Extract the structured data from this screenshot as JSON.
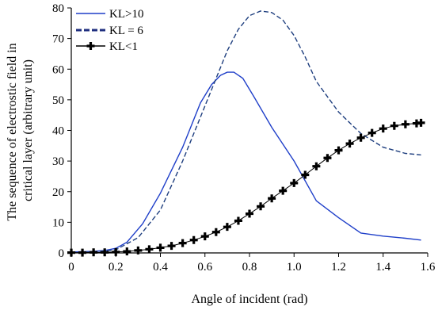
{
  "chart_data": {
    "type": "line",
    "xlabel": "Angle of incident (rad)",
    "ylabel_lines": [
      "The sequence of electrostic field in",
      "critical layer (arbitrary unit)"
    ],
    "xlim": [
      0,
      1.6
    ],
    "ylim": [
      0,
      80
    ],
    "xticks": [
      "0",
      "0.2",
      "0.4",
      "0.6",
      "0.8",
      "1.0",
      "1.2",
      "1.4",
      "1.6"
    ],
    "yticks": [
      "0",
      "10",
      "20",
      "30",
      "40",
      "50",
      "60",
      "70",
      "80"
    ],
    "grid": false,
    "legend_position": "top-left",
    "series": [
      {
        "name": "KL>10",
        "style": "solid",
        "color": "#1f3fc9",
        "x": [
          0,
          0.1,
          0.15,
          0.2,
          0.25,
          0.32,
          0.4,
          0.5,
          0.58,
          0.63,
          0.67,
          0.7,
          0.73,
          0.77,
          0.82,
          0.9,
          1.0,
          1.1,
          1.2,
          1.3,
          1.4,
          1.5,
          1.57
        ],
        "y": [
          0.3,
          0.5,
          0.8,
          1.5,
          3.5,
          9.5,
          19.5,
          34.5,
          49,
          55,
          58,
          59,
          59,
          57,
          51,
          41,
          30,
          17,
          11.5,
          6.5,
          5.5,
          4.8,
          4.2
        ]
      },
      {
        "name": "KL = 6",
        "style": "dashed",
        "color": "#1f3f7f",
        "x": [
          0,
          0.1,
          0.2,
          0.3,
          0.4,
          0.5,
          0.6,
          0.7,
          0.75,
          0.8,
          0.85,
          0.9,
          0.95,
          1.0,
          1.05,
          1.1,
          1.2,
          1.3,
          1.4,
          1.5,
          1.57
        ],
        "y": [
          0.2,
          0.3,
          1.0,
          5,
          14,
          30,
          48,
          66,
          73,
          77.5,
          79,
          78.5,
          76,
          71,
          64,
          56,
          46,
          39,
          34.5,
          32.5,
          32
        ]
      },
      {
        "name": "KL<1",
        "style": "plus-markers",
        "color": "#000000",
        "x": [
          0,
          0.05,
          0.1,
          0.15,
          0.2,
          0.25,
          0.3,
          0.35,
          0.4,
          0.45,
          0.5,
          0.55,
          0.6,
          0.65,
          0.7,
          0.75,
          0.8,
          0.85,
          0.9,
          0.95,
          1.0,
          1.05,
          1.1,
          1.15,
          1.2,
          1.25,
          1.3,
          1.35,
          1.4,
          1.45,
          1.5,
          1.55,
          1.57
        ],
        "y": [
          0.1,
          0.1,
          0.2,
          0.2,
          0.3,
          0.5,
          0.8,
          1.2,
          1.7,
          2.3,
          3.2,
          4.2,
          5.4,
          6.8,
          8.5,
          10.5,
          12.8,
          15.2,
          17.8,
          20.3,
          22.8,
          25.5,
          28.3,
          31,
          33.5,
          35.7,
          37.6,
          39.2,
          40.6,
          41.5,
          42,
          42.3,
          42.5
        ]
      }
    ]
  }
}
